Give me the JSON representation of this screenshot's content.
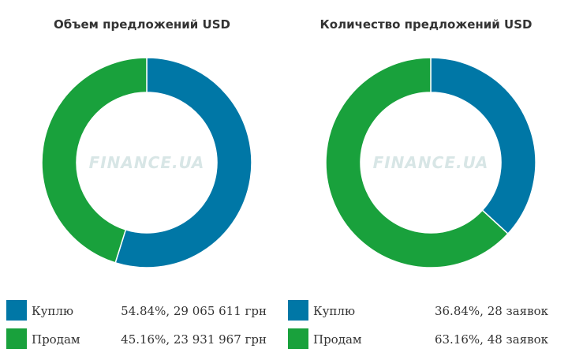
{
  "colors": {
    "buy": "#0077a6",
    "sell": "#19a13c"
  },
  "watermark": "FINANCE.UA",
  "chart_data": [
    {
      "type": "pie",
      "title": "Объем предложений USD",
      "categories": [
        "Куплю",
        "Продам"
      ],
      "values": [
        54.84,
        45.16
      ],
      "legend": [
        {
          "label": "Куплю",
          "value_text": "54.84%, 29 065 611 грн"
        },
        {
          "label": "Продам",
          "value_text": "45.16%, 23 931 967 грн"
        }
      ]
    },
    {
      "type": "pie",
      "title": "Количество предложений USD",
      "categories": [
        "Куплю",
        "Продам"
      ],
      "values": [
        36.84,
        63.16
      ],
      "legend": [
        {
          "label": "Куплю",
          "value_text": "36.84%, 28 заявок"
        },
        {
          "label": "Продам",
          "value_text": "63.16%, 48 заявок"
        }
      ]
    }
  ]
}
